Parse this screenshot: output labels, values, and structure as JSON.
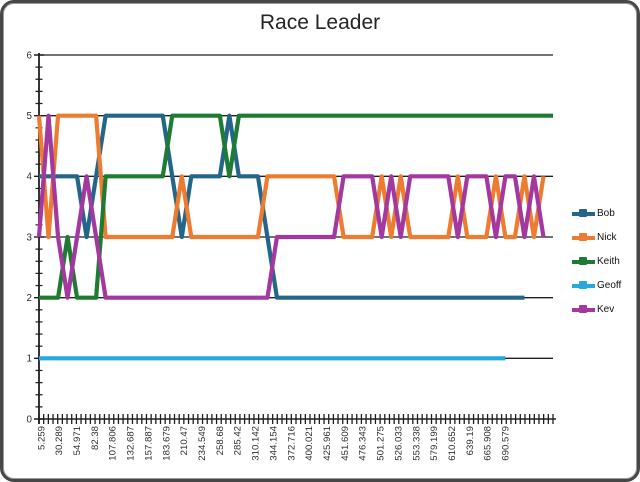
{
  "window": {
    "title": "Race Leader"
  },
  "chart_data": {
    "type": "line",
    "title": "Race Leader",
    "subtitle": "",
    "xlabel": "",
    "ylabel": "",
    "ylim": [
      0,
      6
    ],
    "y_axis": {
      "min": 0,
      "max": 6,
      "major_unit": 1,
      "minor_unit": 0.2,
      "tick_labels": [
        "0",
        "1",
        "2",
        "3",
        "4",
        "5",
        "6"
      ]
    },
    "grid": "horizontal-major-dark",
    "legend_position": "right",
    "axis_color": "#1f1f1f",
    "label_color": "#2e2e2e",
    "x_tick_labels": [
      "5.259",
      "30.289",
      "54.971",
      "82.38",
      "107.806",
      "132.687",
      "157.887",
      "183.679",
      "210.47",
      "234.549",
      "258.68",
      "285.42",
      "310.142",
      "344.154",
      "372.716",
      "400.021",
      "425.961",
      "451.609",
      "476.343",
      "501.275",
      "526.033",
      "553.338",
      "579.199",
      "610.652",
      "639.19",
      "665.908",
      "690.579"
    ],
    "x_points": 55,
    "series": [
      {
        "name": "Bob",
        "color": "#24658A",
        "values": [
          4,
          4,
          4,
          4,
          4,
          3,
          4,
          5,
          5,
          5,
          5,
          5,
          5,
          5,
          4,
          3,
          4,
          4,
          4,
          4,
          5,
          4,
          4,
          4,
          3,
          2,
          2,
          2,
          2,
          2,
          2,
          2,
          2,
          2,
          2,
          2,
          2,
          2,
          2,
          2,
          2,
          2,
          2,
          2,
          2,
          2,
          2,
          2,
          2,
          2,
          2,
          2,
          null,
          null,
          null
        ]
      },
      {
        "name": "Nick",
        "color": "#ED7C30",
        "values": [
          5,
          3,
          5,
          5,
          5,
          5,
          5,
          3,
          3,
          3,
          3,
          3,
          3,
          3,
          3,
          4,
          3,
          3,
          3,
          3,
          3,
          3,
          3,
          3,
          4,
          4,
          4,
          4,
          4,
          4,
          4,
          4,
          3,
          3,
          3,
          3,
          4,
          3,
          4,
          3,
          3,
          3,
          3,
          3,
          4,
          3,
          3,
          3,
          4,
          3,
          3,
          4,
          3,
          4,
          null
        ]
      },
      {
        "name": "Keith",
        "color": "#1E7B32",
        "values": [
          2,
          2,
          2,
          3,
          2,
          2,
          2,
          4,
          4,
          4,
          4,
          4,
          4,
          4,
          5,
          5,
          5,
          5,
          5,
          5,
          4,
          5,
          5,
          5,
          5,
          5,
          5,
          5,
          5,
          5,
          5,
          5,
          5,
          5,
          5,
          5,
          5,
          5,
          5,
          5,
          5,
          5,
          5,
          5,
          5,
          5,
          5,
          5,
          5,
          5,
          5,
          5,
          5,
          5,
          5
        ]
      },
      {
        "name": "Geoff",
        "color": "#27A8DF",
        "values": [
          1,
          1,
          1,
          1,
          1,
          1,
          1,
          1,
          1,
          1,
          1,
          1,
          1,
          1,
          1,
          1,
          1,
          1,
          1,
          1,
          1,
          1,
          1,
          1,
          1,
          1,
          1,
          1,
          1,
          1,
          1,
          1,
          1,
          1,
          1,
          1,
          1,
          1,
          1,
          1,
          1,
          1,
          1,
          1,
          1,
          1,
          1,
          1,
          1,
          1,
          null,
          null,
          null,
          null,
          null
        ]
      },
      {
        "name": "Kev",
        "color": "#A238A0",
        "values": [
          3,
          5,
          3,
          2,
          3,
          4,
          3,
          2,
          2,
          2,
          2,
          2,
          2,
          2,
          2,
          2,
          2,
          2,
          2,
          2,
          2,
          2,
          2,
          2,
          2,
          3,
          3,
          3,
          3,
          3,
          3,
          3,
          4,
          4,
          4,
          4,
          3,
          4,
          3,
          4,
          4,
          4,
          4,
          4,
          3,
          4,
          4,
          4,
          3,
          4,
          4,
          3,
          4,
          3,
          null
        ]
      }
    ]
  }
}
